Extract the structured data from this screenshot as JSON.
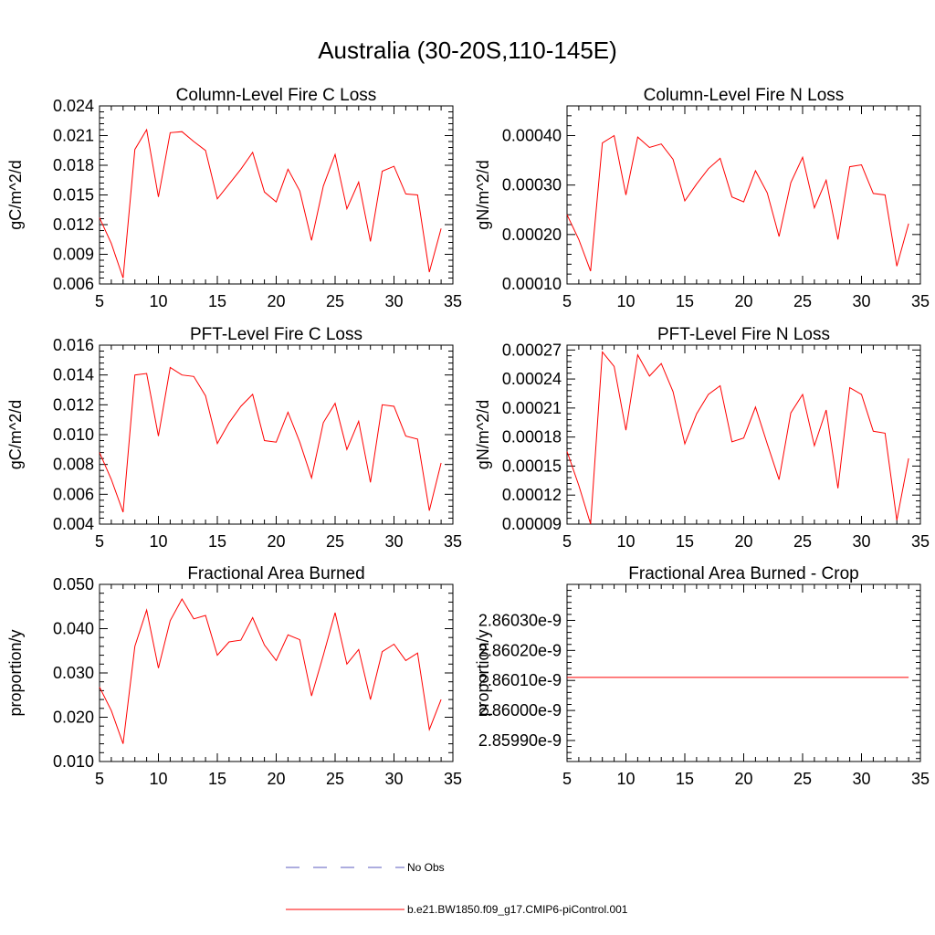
{
  "title": "Australia (30-20S,110-145E)",
  "chart_data": [
    {
      "type": "line",
      "title": "Column-Level Fire C Loss",
      "ylabel": "gC/m^2/d",
      "xlim": [
        5,
        35
      ],
      "ylim": [
        0.006,
        0.024
      ],
      "xticks": [
        5,
        10,
        15,
        20,
        25,
        30,
        35
      ],
      "yticks": [
        "0.006",
        "0.009",
        "0.012",
        "0.015",
        "0.018",
        "0.021",
        "0.024"
      ],
      "x": [
        5,
        6,
        7,
        8,
        9,
        10,
        11,
        12,
        13,
        14,
        15,
        16,
        17,
        18,
        19,
        20,
        21,
        22,
        23,
        24,
        25,
        26,
        27,
        28,
        29,
        30,
        31,
        32,
        33,
        34
      ],
      "series": [
        {
          "name": "b.e21.BW1850.f09_g17.CMIP6-piControl.001",
          "values": [
            0.0127,
            0.0101,
            0.0066,
            0.0196,
            0.0216,
            0.0148,
            0.0213,
            0.0214,
            0.0204,
            0.0195,
            0.0146,
            0.0161,
            0.0176,
            0.0193,
            0.0153,
            0.0143,
            0.0176,
            0.0154,
            0.0104,
            0.0159,
            0.0191,
            0.0136,
            0.0163,
            0.0103,
            0.0174,
            0.0179,
            0.0151,
            0.015,
            0.0072,
            0.0116
          ]
        }
      ]
    },
    {
      "type": "line",
      "title": "Column-Level Fire N Loss",
      "ylabel": "gN/m^2/d",
      "xlim": [
        5,
        35
      ],
      "ylim": [
        0.0001,
        0.00046
      ],
      "xticks": [
        5,
        10,
        15,
        20,
        25,
        30,
        35
      ],
      "yticks": [
        "0.00010",
        "0.00020",
        "0.00030",
        "0.00040"
      ],
      "x": [
        5,
        6,
        7,
        8,
        9,
        10,
        11,
        12,
        13,
        14,
        15,
        16,
        17,
        18,
        19,
        20,
        21,
        22,
        23,
        24,
        25,
        26,
        27,
        28,
        29,
        30,
        31,
        32,
        33,
        34
      ],
      "series": [
        {
          "name": "b.e21.BW1850.f09_g17.CMIP6-piControl.001",
          "values": [
            0.00024,
            0.00019,
            0.000126,
            0.000385,
            0.0004,
            0.00028,
            0.000397,
            0.000376,
            0.000383,
            0.000352,
            0.000268,
            0.000302,
            0.000333,
            0.000354,
            0.000276,
            0.000266,
            0.000329,
            0.000284,
            0.000196,
            0.000305,
            0.000356,
            0.000254,
            0.00031,
            0.00019,
            0.000337,
            0.000341,
            0.000283,
            0.00028,
            0.000136,
            0.000222
          ]
        }
      ]
    },
    {
      "type": "line",
      "title": "PFT-Level Fire C Loss",
      "ylabel": "gC/m^2/d",
      "xlim": [
        5,
        35
      ],
      "ylim": [
        0.004,
        0.016
      ],
      "xticks": [
        5,
        10,
        15,
        20,
        25,
        30,
        35
      ],
      "yticks": [
        "0.004",
        "0.006",
        "0.008",
        "0.010",
        "0.012",
        "0.014",
        "0.016"
      ],
      "x": [
        5,
        6,
        7,
        8,
        9,
        10,
        11,
        12,
        13,
        14,
        15,
        16,
        17,
        18,
        19,
        20,
        21,
        22,
        23,
        24,
        25,
        26,
        27,
        28,
        29,
        30,
        31,
        32,
        33,
        34
      ],
      "series": [
        {
          "name": "b.e21.BW1850.f09_g17.CMIP6-piControl.001",
          "values": [
            0.0088,
            0.007,
            0.0048,
            0.014,
            0.0141,
            0.0099,
            0.0145,
            0.014,
            0.0139,
            0.0126,
            0.0094,
            0.0108,
            0.0119,
            0.0127,
            0.0096,
            0.0095,
            0.0115,
            0.0095,
            0.0071,
            0.0108,
            0.0121,
            0.009,
            0.0109,
            0.0068,
            0.012,
            0.0119,
            0.0099,
            0.0097,
            0.0049,
            0.0081
          ]
        }
      ]
    },
    {
      "type": "line",
      "title": "PFT-Level Fire N Loss",
      "ylabel": "gN/m^2/d",
      "xlim": [
        5,
        35
      ],
      "ylim": [
        9e-05,
        0.000275
      ],
      "xticks": [
        5,
        10,
        15,
        20,
        25,
        30,
        35
      ],
      "yticks": [
        "0.00009",
        "0.00012",
        "0.00015",
        "0.00018",
        "0.00021",
        "0.00024",
        "0.00027"
      ],
      "x": [
        5,
        6,
        7,
        8,
        9,
        10,
        11,
        12,
        13,
        14,
        15,
        16,
        17,
        18,
        19,
        20,
        21,
        22,
        23,
        24,
        25,
        26,
        27,
        28,
        29,
        30,
        31,
        32,
        33,
        34
      ],
      "series": [
        {
          "name": "b.e21.BW1850.f09_g17.CMIP6-piControl.001",
          "values": [
            0.000165,
            0.00013,
            9e-05,
            0.000268,
            0.000253,
            0.000187,
            0.000265,
            0.000243,
            0.000256,
            0.000227,
            0.000173,
            0.000204,
            0.000224,
            0.000233,
            0.000175,
            0.000179,
            0.000211,
            0.000173,
            0.000136,
            0.000205,
            0.000224,
            0.000171,
            0.000208,
            0.000127,
            0.000231,
            0.000224,
            0.000186,
            0.000184,
            9.4e-05,
            0.000158
          ]
        }
      ]
    },
    {
      "type": "line",
      "title": "Fractional Area Burned",
      "ylabel": "proportion/y",
      "xlim": [
        5,
        35
      ],
      "ylim": [
        0.01,
        0.05
      ],
      "xticks": [
        5,
        10,
        15,
        20,
        25,
        30,
        35
      ],
      "yticks": [
        "0.010",
        "0.020",
        "0.030",
        "0.040",
        "0.050"
      ],
      "x": [
        5,
        6,
        7,
        8,
        9,
        10,
        11,
        12,
        13,
        14,
        15,
        16,
        17,
        18,
        19,
        20,
        21,
        22,
        23,
        24,
        25,
        26,
        27,
        28,
        29,
        30,
        31,
        32,
        33,
        34
      ],
      "series": [
        {
          "name": "b.e21.BW1850.f09_g17.CMIP6-piControl.001",
          "values": [
            0.0268,
            0.0215,
            0.014,
            0.036,
            0.0442,
            0.0311,
            0.0418,
            0.0467,
            0.0422,
            0.043,
            0.034,
            0.037,
            0.0374,
            0.0425,
            0.0363,
            0.0328,
            0.0386,
            0.0375,
            0.0248,
            0.034,
            0.0436,
            0.032,
            0.0353,
            0.024,
            0.0348,
            0.0365,
            0.0328,
            0.0345,
            0.0172,
            0.024
          ]
        }
      ]
    },
    {
      "type": "line",
      "title": "Fractional Area Burned - Crop",
      "ylabel": "proportion/y",
      "xlim": [
        5,
        35
      ],
      "ylim": [
        2.85983e-09,
        2.86042e-09
      ],
      "xticks": [
        5,
        10,
        15,
        20,
        25,
        30,
        35
      ],
      "yticks": [
        "2.85990e-9",
        "2.86000e-9",
        "2.86010e-9",
        "2.86020e-9",
        "2.86030e-9"
      ],
      "x": [
        5,
        34
      ],
      "series": [
        {
          "name": "b.e21.BW1850.f09_g17.CMIP6-piControl.001",
          "values": [
            2.86011e-09,
            2.86011e-09
          ]
        }
      ]
    }
  ],
  "legend": {
    "placement": "bottom-center",
    "items": [
      {
        "label": "No Obs",
        "color": "#5b5bbf",
        "dash": true
      },
      {
        "label": "b.e21.BW1850.f09_g17.CMIP6-piControl.001",
        "color": "#ff0000",
        "dash": false
      }
    ]
  },
  "colors": {
    "series": "#ff0000",
    "axis": "#000000"
  }
}
